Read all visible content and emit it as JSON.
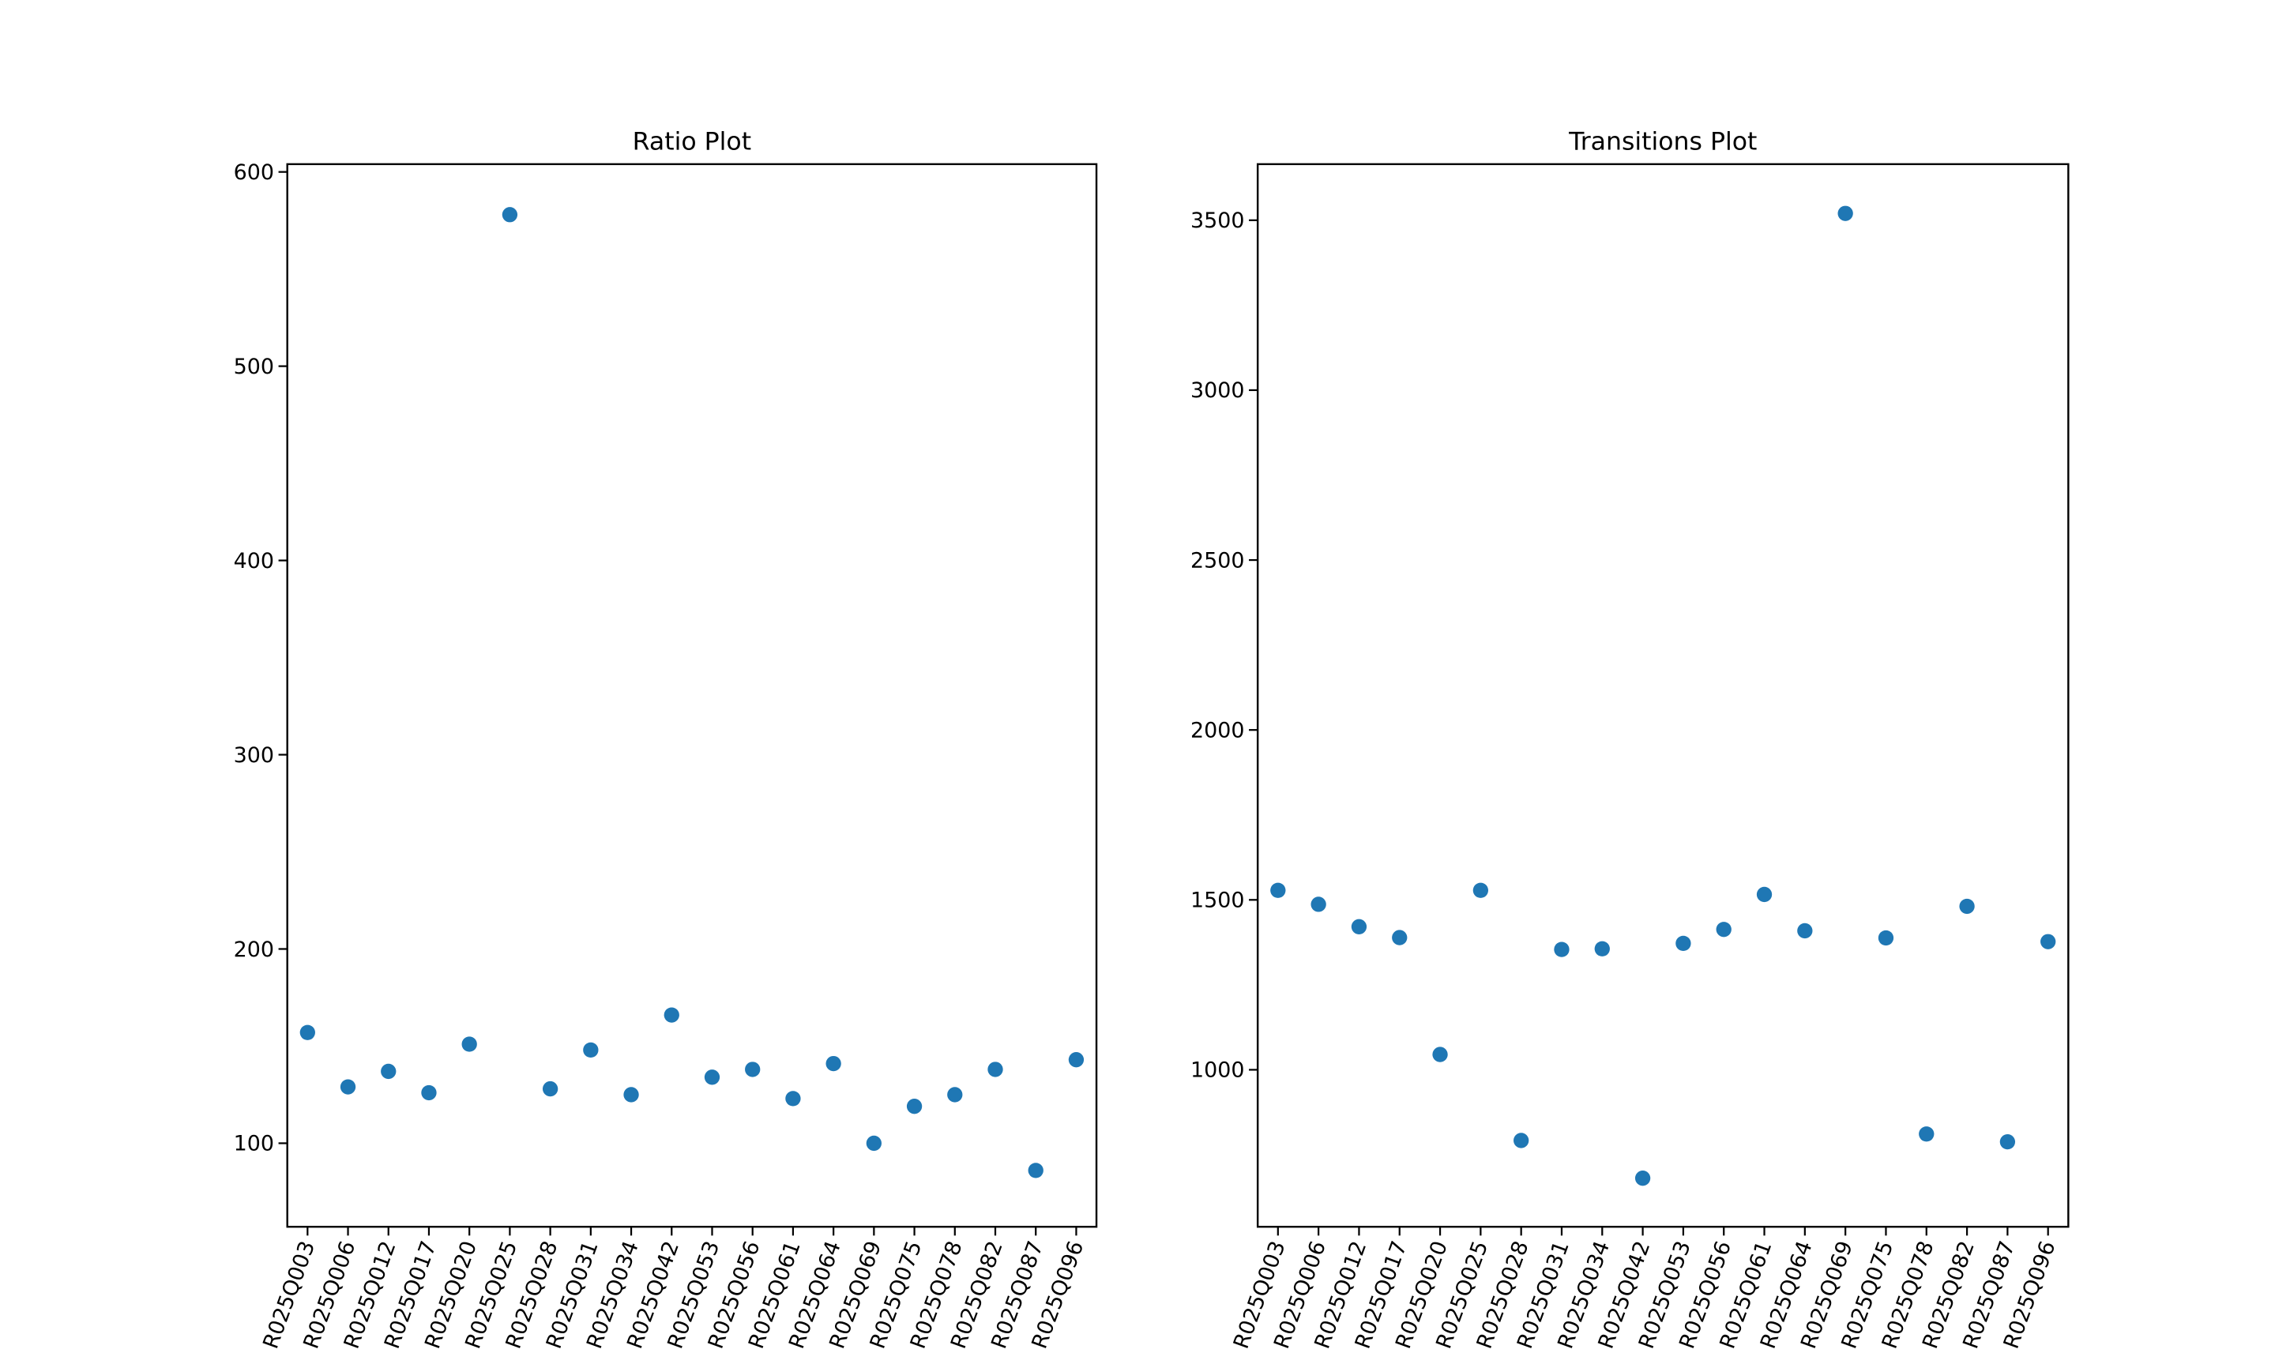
{
  "chart_data": [
    {
      "type": "scatter",
      "title": "Ratio Plot",
      "xlabel": "",
      "ylabel": "",
      "categories": [
        "R025Q003",
        "R025Q006",
        "R025Q012",
        "R025Q017",
        "R025Q020",
        "R025Q025",
        "R025Q028",
        "R025Q031",
        "R025Q034",
        "R025Q042",
        "R025Q053",
        "R025Q056",
        "R025Q061",
        "R025Q064",
        "R025Q069",
        "R025Q075",
        "R025Q078",
        "R025Q082",
        "R025Q087",
        "R025Q096"
      ],
      "values": [
        157,
        129,
        137,
        126,
        151,
        578,
        128,
        148,
        125,
        166,
        134,
        138,
        123,
        141,
        100,
        119,
        125,
        138,
        86,
        143
      ],
      "ylim": [
        57,
        604
      ],
      "yticks": [
        100,
        200,
        300,
        400,
        500,
        600
      ],
      "grid": false,
      "marker_color": "#1f77b4"
    },
    {
      "type": "scatter",
      "title": "Transitions Plot",
      "xlabel": "",
      "ylabel": "",
      "categories": [
        "R025Q003",
        "R025Q006",
        "R025Q012",
        "R025Q017",
        "R025Q020",
        "R025Q025",
        "R025Q028",
        "R025Q031",
        "R025Q034",
        "R025Q042",
        "R025Q053",
        "R025Q056",
        "R025Q061",
        "R025Q064",
        "R025Q069",
        "R025Q075",
        "R025Q078",
        "R025Q082",
        "R025Q087",
        "R025Q096"
      ],
      "values": [
        1528,
        1487,
        1421,
        1389,
        1045,
        1528,
        792,
        1354,
        1356,
        681,
        1372,
        1413,
        1516,
        1409,
        3520,
        1388,
        811,
        1481,
        788,
        1377
      ],
      "ylim": [
        538,
        3665
      ],
      "yticks": [
        1000,
        1500,
        2000,
        2500,
        3000,
        3500
      ],
      "grid": false,
      "marker_color": "#1f77b4"
    }
  ]
}
